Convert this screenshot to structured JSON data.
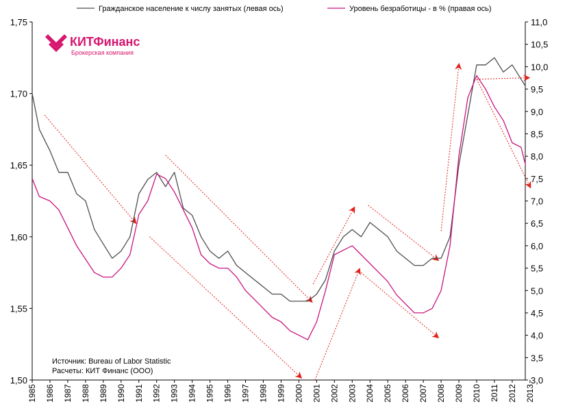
{
  "logo": {
    "name": "КИТФинанс",
    "tagline": "Брокерская компания",
    "color": "#d6166f"
  },
  "legend": [
    {
      "label": "Гражданское население к числу занятых (левая ось)",
      "color": "#4d4d4d"
    },
    {
      "label": "Уровень безработицы - в % (правая ось)",
      "color": "#c8137e"
    }
  ],
  "source": {
    "line1": "Источник: Bureau of Labor Statistic",
    "line2": "Расчеты: КИТ Финанс (ООО)"
  },
  "arrow_color": "#e0201b",
  "chart_data": {
    "type": "line",
    "title": "",
    "xlabel": "",
    "x_range": [
      1985.0,
      2012.75
    ],
    "x_tick_labels": [
      "1985",
      "1986",
      "1987",
      "1988",
      "1989",
      "1990",
      "1991",
      "1992",
      "1993",
      "1994",
      "1995",
      "1996",
      "1997",
      "1998",
      "1999",
      "2000",
      "2001",
      "2002",
      "2003",
      "2004",
      "2005",
      "2006",
      "2007",
      "2008",
      "2009",
      "2010",
      "2011",
      "2012",
      "2013"
    ],
    "y_left": {
      "range": [
        1.5,
        1.75
      ],
      "tick_labels": [
        "1,50",
        "1,55",
        "1,60",
        "1,65",
        "1,70",
        "1,75"
      ],
      "tick_values": [
        1.5,
        1.55,
        1.6,
        1.65,
        1.7,
        1.75
      ]
    },
    "y_right": {
      "range": [
        3.0,
        11.0
      ],
      "tick_labels": [
        "3,0",
        "3,5",
        "4,0",
        "4,5",
        "5,0",
        "5,5",
        "6,0",
        "6,5",
        "7,0",
        "7,5",
        "8,0",
        "8,5",
        "9,0",
        "9,5",
        "10,0",
        "10,5",
        "11,0"
      ],
      "tick_values": [
        3.0,
        3.5,
        4.0,
        4.5,
        5.0,
        5.5,
        6.0,
        6.5,
        7.0,
        7.5,
        8.0,
        8.5,
        9.0,
        9.5,
        10.0,
        10.5,
        11.0
      ]
    },
    "series": [
      {
        "name": "Гражданское население к числу занятых (левая ось)",
        "axis": "left",
        "color": "#4d4d4d",
        "x": [
          1985.0,
          1985.4,
          1986.0,
          1986.5,
          1987.0,
          1987.5,
          1988.0,
          1988.5,
          1989.0,
          1989.5,
          1990.0,
          1990.5,
          1991.0,
          1991.5,
          1992.0,
          1992.5,
          1993.0,
          1993.5,
          1994.0,
          1994.5,
          1995.0,
          1995.5,
          1996.0,
          1996.5,
          1997.0,
          1997.5,
          1998.0,
          1998.5,
          1999.0,
          1999.5,
          2000.0,
          2000.5,
          2001.0,
          2001.5,
          2002.0,
          2002.5,
          2003.0,
          2003.5,
          2004.0,
          2004.5,
          2005.0,
          2005.5,
          2006.0,
          2006.5,
          2007.0,
          2007.5,
          2008.0,
          2008.5,
          2009.0,
          2009.5,
          2010.0,
          2010.5,
          2011.0,
          2011.5,
          2012.0,
          2012.5,
          2012.75
        ],
        "y": [
          1.7,
          1.675,
          1.66,
          1.645,
          1.645,
          1.63,
          1.625,
          1.605,
          1.595,
          1.585,
          1.59,
          1.6,
          1.63,
          1.64,
          1.645,
          1.635,
          1.645,
          1.62,
          1.615,
          1.6,
          1.59,
          1.585,
          1.59,
          1.58,
          1.575,
          1.57,
          1.565,
          1.56,
          1.56,
          1.555,
          1.555,
          1.555,
          1.56,
          1.57,
          1.59,
          1.6,
          1.605,
          1.6,
          1.61,
          1.605,
          1.6,
          1.59,
          1.585,
          1.58,
          1.58,
          1.585,
          1.585,
          1.6,
          1.65,
          1.685,
          1.72,
          1.72,
          1.725,
          1.715,
          1.72,
          1.71,
          1.705
        ]
      },
      {
        "name": "Уровень безработицы - в % (правая ось)",
        "axis": "right",
        "color": "#c8137e",
        "x": [
          1985.0,
          1985.4,
          1986.0,
          1986.5,
          1987.0,
          1987.5,
          1988.0,
          1988.5,
          1989.0,
          1989.5,
          1990.0,
          1990.5,
          1991.0,
          1991.5,
          1992.0,
          1992.5,
          1993.0,
          1993.5,
          1994.0,
          1994.5,
          1995.0,
          1995.5,
          1996.0,
          1996.5,
          1997.0,
          1997.5,
          1998.0,
          1998.5,
          1999.0,
          1999.5,
          2000.0,
          2000.5,
          2001.0,
          2001.5,
          2002.0,
          2002.5,
          2003.0,
          2003.5,
          2004.0,
          2004.5,
          2005.0,
          2005.5,
          2006.0,
          2006.5,
          2007.0,
          2007.5,
          2008.0,
          2008.5,
          2009.0,
          2009.5,
          2010.0,
          2010.5,
          2011.0,
          2011.5,
          2012.0,
          2012.5,
          2012.75
        ],
        "y": [
          7.5,
          7.1,
          7.0,
          6.8,
          6.4,
          6.0,
          5.7,
          5.4,
          5.3,
          5.3,
          5.5,
          5.8,
          6.7,
          7.0,
          7.6,
          7.5,
          7.2,
          6.8,
          6.4,
          5.8,
          5.6,
          5.5,
          5.5,
          5.3,
          5.0,
          4.8,
          4.6,
          4.4,
          4.3,
          4.1,
          4.0,
          3.9,
          4.3,
          5.0,
          5.8,
          5.9,
          6.0,
          5.8,
          5.6,
          5.4,
          5.2,
          4.9,
          4.7,
          4.5,
          4.5,
          4.6,
          5.0,
          6.0,
          8.0,
          9.3,
          9.8,
          9.5,
          9.1,
          8.8,
          8.3,
          8.2,
          7.8
        ]
      }
    ],
    "annotations": [
      {
        "type": "dashed-arrow",
        "from": [
          1985.7,
          1.685
        ],
        "to": [
          1990.8,
          1.61
        ]
      },
      {
        "type": "dashed-arrow",
        "from": [
          1991.6,
          1.6
        ],
        "to": [
          2000.1,
          1.502
        ]
      },
      {
        "type": "dashed-arrow",
        "from": [
          1992.5,
          1.657
        ],
        "to": [
          2000.7,
          1.555
        ]
      },
      {
        "type": "dashed-arrow",
        "from": [
          2000.9,
          1.5
        ],
        "to": [
          2003.4,
          1.577
        ]
      },
      {
        "type": "dashed-arrow",
        "from": [
          2000.8,
          1.567
        ],
        "to": [
          2003.1,
          1.62
        ]
      },
      {
        "type": "dashed-arrow",
        "from": [
          2003.5,
          1.575
        ],
        "to": [
          2007.8,
          1.53
        ]
      },
      {
        "type": "dashed-arrow",
        "from": [
          2003.9,
          1.622
        ],
        "to": [
          2007.8,
          1.584
        ]
      },
      {
        "type": "dashed-arrow",
        "from": [
          2008.0,
          1.604
        ],
        "to": [
          2009.0,
          1.72
        ]
      },
      {
        "type": "dashed-arrow",
        "from": [
          2010.0,
          1.71
        ],
        "to": [
          2012.9,
          1.711
        ]
      },
      {
        "type": "dashed-arrow",
        "from": [
          2010.0,
          1.71
        ],
        "to": [
          2013.0,
          1.635
        ]
      }
    ]
  }
}
